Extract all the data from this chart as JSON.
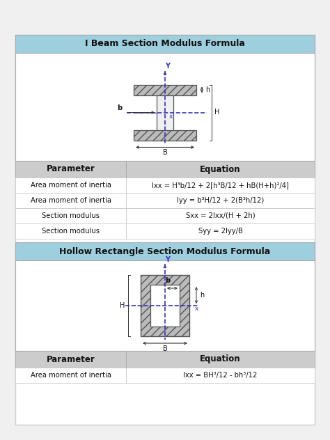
{
  "header1": "I Beam Section Modulus Formula",
  "header2": "Hollow Rectangle Section Modulus Formula",
  "table1_header": [
    "Parameter",
    "Equation"
  ],
  "table1_rows": [
    [
      "Area moment of inertia",
      "Ixx = H³b/12 + 2[h³B/12 + hB(H+h)²/4]"
    ],
    [
      "Area moment of inertia",
      "Iyy = b³H/12 + 2(B³h/12)"
    ],
    [
      "Section modulus",
      "Sxx = 2Ixx/(H + 2h)"
    ],
    [
      "Section modulus",
      "Syy = 2Iyy/B"
    ]
  ],
  "table2_header": [
    "Parameter",
    "Equation"
  ],
  "table2_rows": [
    [
      "Area moment of inertia",
      "Ixx = BH³/12 - bh³/12"
    ]
  ],
  "header_bg": "#9ecfde",
  "table_header_bg": "#cccccc",
  "white_bg": "#ffffff",
  "outer_bg": "#ffffff",
  "page_bg": "#f0f0f0",
  "border_color": "#aaaaaa",
  "hatch_color": "#bbbbbb",
  "text_dark": "#111111",
  "blue_axis": "#3333bb"
}
